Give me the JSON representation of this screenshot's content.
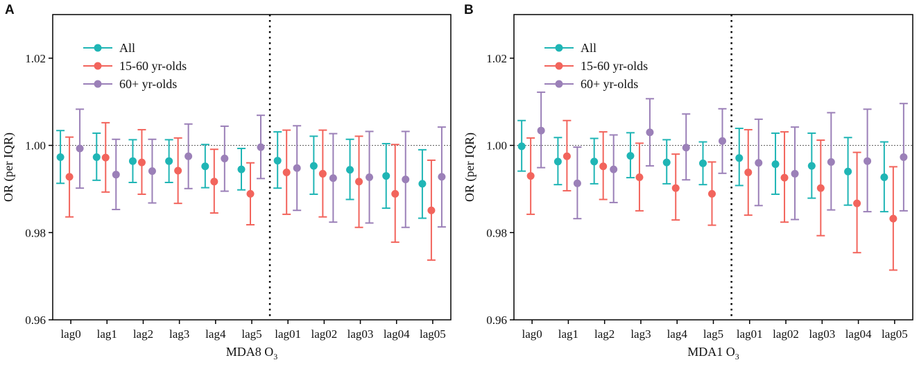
{
  "colors": {
    "all": "#1fb5b5",
    "young": "#f2645c",
    "old": "#9b80b8",
    "frame": "#000000",
    "refline": "#555555"
  },
  "legend": [
    {
      "key": "all",
      "label": "All"
    },
    {
      "key": "young",
      "label": "15-60 yr-olds"
    },
    {
      "key": "old",
      "label": "60+ yr-olds"
    }
  ],
  "chart_data": [
    {
      "type": "errorbar",
      "panel_label": "A",
      "ylabel": "OR (per IQR)",
      "xlabel": {
        "main": "MDA8 O",
        "sub": "3"
      },
      "ylim": [
        0.96,
        1.03
      ],
      "yticks": [
        "0.96",
        "0.98",
        "1.00",
        "1.02"
      ],
      "reference_line": 1.0,
      "divider_after": "lag5",
      "categories": [
        "lag0",
        "lag1",
        "lag2",
        "lag3",
        "lag4",
        "lag5",
        "lag01",
        "lag02",
        "lag03",
        "lag04",
        "lag05"
      ],
      "series": [
        {
          "key": "all",
          "name": "All",
          "values": [
            0.9973,
            0.9973,
            0.9964,
            0.9964,
            0.9952,
            0.9945,
            0.9965,
            0.9953,
            0.9944,
            0.993,
            0.9912
          ],
          "lower": [
            0.9913,
            0.992,
            0.9915,
            0.9915,
            0.9903,
            0.9898,
            0.9902,
            0.9888,
            0.9876,
            0.9856,
            0.9833
          ],
          "upper": [
            1.0034,
            1.0028,
            1.0013,
            1.0013,
            1.0002,
            0.9993,
            1.0031,
            1.0021,
            1.0014,
            1.0004,
            0.999
          ]
        },
        {
          "key": "young",
          "name": "15-60 yr-olds",
          "values": [
            0.9928,
            0.9972,
            0.9961,
            0.9942,
            0.9917,
            0.9889,
            0.9938,
            0.9935,
            0.9917,
            0.9889,
            0.9851
          ],
          "lower": [
            0.9836,
            0.9893,
            0.9888,
            0.9867,
            0.9845,
            0.9818,
            0.9842,
            0.9836,
            0.9812,
            0.9778,
            0.9737
          ],
          "upper": [
            1.0019,
            1.0052,
            1.0036,
            1.0017,
            0.9991,
            0.996,
            1.0035,
            1.0035,
            1.0021,
            1.0002,
            0.9966
          ]
        },
        {
          "key": "old",
          "name": "60+ yr-olds",
          "values": [
            0.9993,
            0.9933,
            0.9941,
            0.9975,
            0.997,
            0.9996,
            0.9948,
            0.9925,
            0.9927,
            0.9922,
            0.9928
          ],
          "lower": [
            0.9902,
            0.9853,
            0.9868,
            0.9901,
            0.9895,
            0.9924,
            0.9851,
            0.9824,
            0.9822,
            0.9812,
            0.9813
          ],
          "upper": [
            1.0083,
            1.0014,
            1.0014,
            1.0049,
            1.0044,
            1.0069,
            1.0045,
            1.0027,
            1.0032,
            1.0032,
            1.0042
          ]
        }
      ]
    },
    {
      "type": "errorbar",
      "panel_label": "B",
      "ylabel": "OR (per IQR)",
      "xlabel": {
        "main": "MDA1 O",
        "sub": "3"
      },
      "ylim": [
        0.96,
        1.03
      ],
      "yticks": [
        "0.96",
        "0.98",
        "1.00",
        "1.02"
      ],
      "reference_line": 1.0,
      "divider_after": "lag5",
      "categories": [
        "lag0",
        "lag1",
        "lag2",
        "lag3",
        "lag4",
        "lag5",
        "lag01",
        "lag02",
        "lag03",
        "lag04",
        "lag05"
      ],
      "series": [
        {
          "key": "all",
          "name": "All",
          "values": [
            0.9998,
            0.9963,
            0.9963,
            0.9976,
            0.9961,
            0.9959,
            0.9971,
            0.9957,
            0.9953,
            0.994,
            0.9927
          ],
          "lower": [
            0.9941,
            0.991,
            0.9912,
            0.9926,
            0.9912,
            0.991,
            0.9908,
            0.9888,
            0.9879,
            0.9863,
            0.9848
          ],
          "upper": [
            1.0057,
            1.0018,
            1.0016,
            1.0029,
            1.0013,
            1.0008,
            1.0039,
            1.0028,
            1.0028,
            1.0018,
            1.0008
          ]
        },
        {
          "key": "young",
          "name": "15-60 yr-olds",
          "values": [
            0.993,
            0.9975,
            0.9952,
            0.9927,
            0.9902,
            0.9889,
            0.9938,
            0.9926,
            0.9902,
            0.9867,
            0.9832
          ],
          "lower": [
            0.9842,
            0.9896,
            0.9876,
            0.985,
            0.9829,
            0.9817,
            0.984,
            0.9824,
            0.9793,
            0.9754,
            0.9714
          ],
          "upper": [
            1.0017,
            1.0057,
            1.0031,
            1.0005,
            0.998,
            0.9962,
            1.0036,
            1.0031,
            1.0012,
            0.9984,
            0.9951
          ]
        },
        {
          "key": "old",
          "name": "60+ yr-olds",
          "values": [
            1.0034,
            0.9913,
            0.9945,
            1.003,
            0.9995,
            1.001,
            0.996,
            0.9935,
            0.9962,
            0.9964,
            0.9973
          ],
          "lower": [
            0.9949,
            0.9832,
            0.9869,
            0.9953,
            0.9921,
            0.9936,
            0.9862,
            0.983,
            0.9852,
            0.9848,
            0.985
          ],
          "upper": [
            1.0122,
            0.9996,
            1.0024,
            1.0107,
            1.0072,
            1.0084,
            1.006,
            1.0042,
            1.0075,
            1.0083,
            1.0096
          ]
        }
      ]
    }
  ]
}
